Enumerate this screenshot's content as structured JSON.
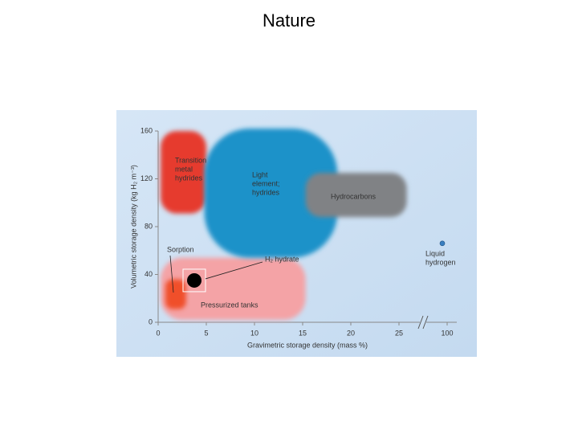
{
  "chart_data": {
    "type": "region",
    "title": "Nature",
    "xlabel": "Gravimetric storage density (mass %)",
    "ylabel": "Volumetric storage density (kg H₂ m⁻³)",
    "xlim": [
      0,
      101
    ],
    "xbreak": [
      27.5,
      97.5
    ],
    "ylim": [
      0,
      160
    ],
    "xticks": [
      0,
      5,
      10,
      15,
      20,
      25,
      100
    ],
    "yticks": [
      0,
      40,
      80,
      120,
      160
    ],
    "regions": [
      {
        "label": [
          "Pressurized tanks"
        ],
        "color": "#f4a3a6",
        "x": [
          0.25,
          15.3
        ],
        "y": [
          2,
          54
        ]
      },
      {
        "label": [
          "Transition",
          "metal",
          "hydrides"
        ],
        "color": "#e63b2e",
        "x": [
          0.25,
          5
        ],
        "y": [
          91,
          160
        ]
      },
      {
        "label": [
          "Light",
          "element;",
          "hydrides"
        ],
        "color": "#1f92c9",
        "x": [
          4.8,
          18.6
        ],
        "y": [
          54,
          162
        ]
      },
      {
        "label": [
          "Hydrocarbons"
        ],
        "color": "#808285",
        "x": [
          15.3,
          25.8
        ],
        "y": [
          88,
          125
        ]
      },
      {
        "label": [
          "Sorption"
        ],
        "color": "#f0502c",
        "x": [
          0.75,
          2.9
        ],
        "y": [
          11,
          36
        ]
      }
    ],
    "points": [
      {
        "label": [
          "H₂ hydrate"
        ],
        "color": "#000000",
        "x": 3.75,
        "y": 35
      },
      {
        "label": [
          "Liquid",
          "hydrogen"
        ],
        "color": "#3a7fc0",
        "x": 99.5,
        "y": 66
      }
    ]
  }
}
